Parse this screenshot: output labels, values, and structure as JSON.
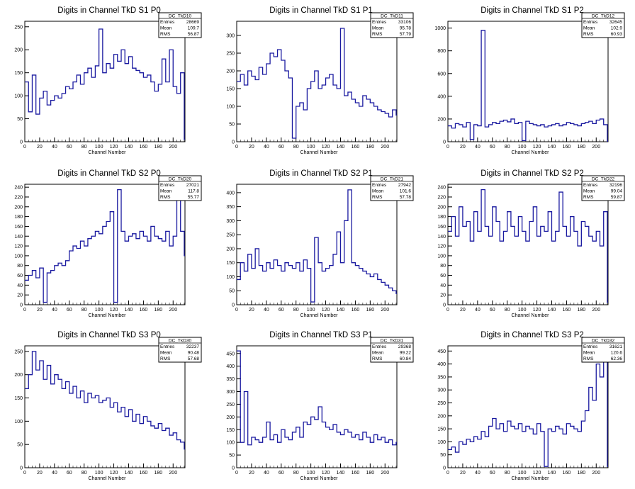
{
  "xlabel": "Channel Number",
  "stats_labels": [
    "Entries",
    "Mean",
    "RMS"
  ],
  "colors": {
    "line": "#1a1aa0",
    "axis": "#000000",
    "background": "#ffffff"
  },
  "chart_data": [
    {
      "type": "line",
      "title": "Digits in Channel TkD S1 P0",
      "stats": {
        "name": "DC_TkD10",
        "entries": "28669",
        "mean": "109.7",
        "rms": "56.87"
      },
      "xlim": [
        0,
        216
      ],
      "ylim": [
        0,
        262
      ],
      "xticks": [
        0,
        20,
        40,
        60,
        80,
        100,
        120,
        140,
        160,
        180,
        200
      ],
      "yticks": [
        0,
        50,
        100,
        150,
        200,
        250
      ],
      "x": [
        0,
        5,
        10,
        15,
        20,
        25,
        30,
        35,
        40,
        45,
        50,
        55,
        60,
        65,
        70,
        75,
        80,
        85,
        90,
        95,
        100,
        105,
        110,
        115,
        120,
        125,
        130,
        135,
        140,
        145,
        150,
        155,
        160,
        165,
        170,
        175,
        180,
        185,
        190,
        195,
        200,
        205,
        210,
        215
      ],
      "values": [
        130,
        65,
        145,
        60,
        95,
        110,
        80,
        90,
        100,
        95,
        105,
        120,
        115,
        130,
        145,
        125,
        150,
        160,
        140,
        165,
        245,
        150,
        170,
        160,
        190,
        175,
        200,
        170,
        185,
        160,
        155,
        150,
        140,
        145,
        130,
        110,
        125,
        180,
        130,
        200,
        120,
        105,
        150,
        5
      ]
    },
    {
      "type": "line",
      "title": "Digits in Channel TkD S1 P1",
      "stats": {
        "name": "DC_TkD11",
        "entries": "33106",
        "mean": "95.78",
        "rms": "57.79"
      },
      "xlim": [
        0,
        216
      ],
      "ylim": [
        0,
        340
      ],
      "xticks": [
        0,
        20,
        40,
        60,
        80,
        100,
        120,
        140,
        160,
        180,
        200
      ],
      "yticks": [
        0,
        50,
        100,
        150,
        200,
        250,
        300
      ],
      "x": [
        0,
        5,
        10,
        15,
        20,
        25,
        30,
        35,
        40,
        45,
        50,
        55,
        60,
        65,
        70,
        75,
        80,
        85,
        90,
        95,
        100,
        105,
        110,
        115,
        120,
        125,
        130,
        135,
        140,
        145,
        150,
        155,
        160,
        165,
        170,
        175,
        180,
        185,
        190,
        195,
        200,
        205,
        210,
        215
      ],
      "values": [
        170,
        190,
        160,
        200,
        185,
        175,
        210,
        190,
        220,
        250,
        240,
        260,
        230,
        200,
        180,
        10,
        100,
        110,
        90,
        150,
        170,
        200,
        150,
        160,
        180,
        190,
        160,
        150,
        320,
        130,
        140,
        120,
        110,
        100,
        130,
        120,
        110,
        100,
        90,
        85,
        80,
        70,
        90,
        75
      ]
    },
    {
      "type": "line",
      "title": "Digits in Channel TkD S1 P2",
      "stats": {
        "name": "DC_TkD12",
        "entries": "32645",
        "mean": "102.9",
        "rms": "60.93"
      },
      "xlim": [
        0,
        216
      ],
      "ylim": [
        0,
        1060
      ],
      "xticks": [
        0,
        20,
        40,
        60,
        80,
        100,
        120,
        140,
        160,
        180,
        200
      ],
      "yticks": [
        0,
        200,
        400,
        600,
        800,
        1000
      ],
      "x": [
        0,
        5,
        10,
        15,
        20,
        25,
        30,
        35,
        40,
        45,
        50,
        55,
        60,
        65,
        70,
        75,
        80,
        85,
        90,
        95,
        100,
        105,
        110,
        115,
        120,
        125,
        130,
        135,
        140,
        145,
        150,
        155,
        160,
        165,
        170,
        175,
        180,
        185,
        190,
        195,
        200,
        205,
        210,
        215
      ],
      "values": [
        140,
        120,
        160,
        150,
        130,
        170,
        20,
        150,
        140,
        980,
        130,
        150,
        170,
        160,
        180,
        190,
        175,
        200,
        160,
        170,
        10,
        180,
        160,
        150,
        140,
        150,
        130,
        140,
        150,
        160,
        140,
        150,
        170,
        160,
        150,
        140,
        160,
        170,
        180,
        160,
        190,
        200,
        150,
        5
      ]
    },
    {
      "type": "line",
      "title": "Digits in Channel TkD S2 P0",
      "stats": {
        "name": "DC_TkD20",
        "entries": "27021",
        "mean": "117.8",
        "rms": "55.77"
      },
      "xlim": [
        0,
        216
      ],
      "ylim": [
        0,
        246
      ],
      "xticks": [
        0,
        20,
        40,
        60,
        80,
        100,
        120,
        140,
        160,
        180,
        200
      ],
      "yticks": [
        0,
        20,
        40,
        60,
        80,
        100,
        120,
        140,
        160,
        180,
        200,
        220,
        240
      ],
      "x": [
        0,
        5,
        10,
        15,
        20,
        25,
        30,
        35,
        40,
        45,
        50,
        55,
        60,
        65,
        70,
        75,
        80,
        85,
        90,
        95,
        100,
        105,
        110,
        115,
        120,
        125,
        130,
        135,
        140,
        145,
        150,
        155,
        160,
        165,
        170,
        175,
        180,
        185,
        190,
        195,
        200,
        205,
        210,
        215
      ],
      "values": [
        50,
        60,
        70,
        55,
        75,
        5,
        65,
        70,
        80,
        85,
        80,
        90,
        110,
        120,
        115,
        130,
        120,
        135,
        140,
        150,
        145,
        160,
        170,
        190,
        5,
        235,
        150,
        130,
        140,
        145,
        135,
        150,
        140,
        130,
        160,
        140,
        135,
        130,
        150,
        120,
        140,
        215,
        150,
        100
      ]
    },
    {
      "type": "line",
      "title": "Digits in Channel TkD S2 P1",
      "stats": {
        "name": "DC_TkD21",
        "entries": "27942",
        "mean": "101.6",
        "rms": "57.78"
      },
      "xlim": [
        0,
        216
      ],
      "ylim": [
        0,
        430
      ],
      "xticks": [
        0,
        20,
        40,
        60,
        80,
        100,
        120,
        140,
        160,
        180,
        200
      ],
      "yticks": [
        0,
        50,
        100,
        150,
        200,
        250,
        300,
        350,
        400
      ],
      "x": [
        0,
        5,
        10,
        15,
        20,
        25,
        30,
        35,
        40,
        45,
        50,
        55,
        60,
        65,
        70,
        75,
        80,
        85,
        90,
        95,
        100,
        105,
        110,
        115,
        120,
        125,
        130,
        135,
        140,
        145,
        150,
        155,
        160,
        165,
        170,
        175,
        180,
        185,
        190,
        195,
        200,
        205,
        210,
        215
      ],
      "values": [
        90,
        150,
        120,
        180,
        130,
        200,
        140,
        120,
        150,
        130,
        160,
        140,
        120,
        150,
        140,
        130,
        150,
        120,
        160,
        130,
        10,
        240,
        150,
        120,
        130,
        140,
        180,
        260,
        150,
        300,
        410,
        150,
        140,
        130,
        120,
        110,
        100,
        110,
        90,
        80,
        70,
        60,
        50,
        40
      ]
    },
    {
      "type": "line",
      "title": "Digits in Channel TkD S2 P2",
      "stats": {
        "name": "DC_TkD22",
        "entries": "32196",
        "mean": "99.04",
        "rms": "59.87"
      },
      "xlim": [
        0,
        216
      ],
      "ylim": [
        0,
        246
      ],
      "xticks": [
        0,
        20,
        40,
        60,
        80,
        100,
        120,
        140,
        160,
        180,
        200
      ],
      "yticks": [
        0,
        20,
        40,
        60,
        80,
        100,
        120,
        140,
        160,
        180,
        200,
        220,
        240
      ],
      "x": [
        0,
        5,
        10,
        15,
        20,
        25,
        30,
        35,
        40,
        45,
        50,
        55,
        60,
        65,
        70,
        75,
        80,
        85,
        90,
        95,
        100,
        105,
        110,
        115,
        120,
        125,
        130,
        135,
        140,
        145,
        150,
        155,
        160,
        165,
        170,
        175,
        180,
        185,
        190,
        195,
        200,
        205,
        210,
        215
      ],
      "values": [
        150,
        180,
        140,
        200,
        160,
        170,
        130,
        190,
        150,
        235,
        160,
        140,
        200,
        170,
        130,
        150,
        190,
        160,
        140,
        180,
        150,
        130,
        170,
        200,
        140,
        160,
        150,
        190,
        130,
        150,
        230,
        160,
        140,
        180,
        150,
        120,
        170,
        160,
        140,
        130,
        150,
        120,
        190,
        5
      ]
    },
    {
      "type": "line",
      "title": "Digits in Channel TkD S3 P0",
      "stats": {
        "name": "DC_TkD30",
        "entries": "32237",
        "mean": "90.48",
        "rms": "57.68"
      },
      "xlim": [
        0,
        216
      ],
      "ylim": [
        0,
        262
      ],
      "xticks": [
        0,
        20,
        40,
        60,
        80,
        100,
        120,
        140,
        160,
        180,
        200
      ],
      "yticks": [
        0,
        50,
        100,
        150,
        200,
        250
      ],
      "x": [
        0,
        5,
        10,
        15,
        20,
        25,
        30,
        35,
        40,
        45,
        50,
        55,
        60,
        65,
        70,
        75,
        80,
        85,
        90,
        95,
        100,
        105,
        110,
        115,
        120,
        125,
        130,
        135,
        140,
        145,
        150,
        155,
        160,
        165,
        170,
        175,
        180,
        185,
        190,
        195,
        200,
        205,
        210,
        215
      ],
      "values": [
        170,
        200,
        250,
        210,
        230,
        190,
        220,
        180,
        200,
        190,
        170,
        185,
        160,
        175,
        150,
        165,
        140,
        160,
        150,
        155,
        140,
        145,
        150,
        130,
        140,
        120,
        130,
        110,
        125,
        100,
        115,
        95,
        110,
        100,
        90,
        85,
        95,
        80,
        85,
        70,
        75,
        60,
        55,
        40
      ]
    },
    {
      "type": "line",
      "title": "Digits in Channel TkD S3 P1",
      "stats": {
        "name": "DC_TkD31",
        "entries": "29368",
        "mean": "99.22",
        "rms": "60.84"
      },
      "xlim": [
        0,
        216
      ],
      "ylim": [
        0,
        480
      ],
      "xticks": [
        0,
        20,
        40,
        60,
        80,
        100,
        120,
        140,
        160,
        180,
        200
      ],
      "yticks": [
        0,
        50,
        100,
        150,
        200,
        250,
        300,
        350,
        400,
        450
      ],
      "x": [
        0,
        5,
        10,
        15,
        20,
        25,
        30,
        35,
        40,
        45,
        50,
        55,
        60,
        65,
        70,
        75,
        80,
        85,
        90,
        95,
        100,
        105,
        110,
        115,
        120,
        125,
        130,
        135,
        140,
        145,
        150,
        155,
        160,
        165,
        170,
        175,
        180,
        185,
        190,
        195,
        200,
        205,
        210,
        215
      ],
      "values": [
        460,
        100,
        300,
        90,
        120,
        110,
        100,
        120,
        180,
        110,
        130,
        100,
        150,
        120,
        110,
        140,
        160,
        120,
        180,
        170,
        200,
        190,
        240,
        180,
        160,
        150,
        170,
        140,
        130,
        150,
        140,
        120,
        130,
        110,
        140,
        120,
        100,
        130,
        110,
        120,
        100,
        110,
        90,
        100
      ]
    },
    {
      "type": "line",
      "title": "Digits in Channel TkD S3 P2",
      "stats": {
        "name": "DC_TkD32",
        "entries": "31621",
        "mean": "120.6",
        "rms": "62.36"
      },
      "xlim": [
        0,
        216
      ],
      "ylim": [
        0,
        470
      ],
      "xticks": [
        0,
        20,
        40,
        60,
        80,
        100,
        120,
        140,
        160,
        180,
        200
      ],
      "yticks": [
        0,
        50,
        100,
        150,
        200,
        250,
        300,
        350,
        400,
        450
      ],
      "x": [
        0,
        5,
        10,
        15,
        20,
        25,
        30,
        35,
        40,
        45,
        50,
        55,
        60,
        65,
        70,
        75,
        80,
        85,
        90,
        95,
        100,
        105,
        110,
        115,
        120,
        125,
        130,
        135,
        140,
        145,
        150,
        155,
        160,
        165,
        170,
        175,
        180,
        185,
        190,
        195,
        200,
        205,
        210,
        215
      ],
      "values": [
        70,
        80,
        60,
        100,
        90,
        110,
        100,
        120,
        110,
        140,
        120,
        160,
        190,
        150,
        170,
        140,
        180,
        160,
        150,
        170,
        140,
        160,
        150,
        130,
        170,
        140,
        5,
        150,
        140,
        160,
        150,
        130,
        170,
        160,
        150,
        140,
        180,
        220,
        310,
        260,
        400,
        350,
        420,
        5
      ]
    }
  ]
}
